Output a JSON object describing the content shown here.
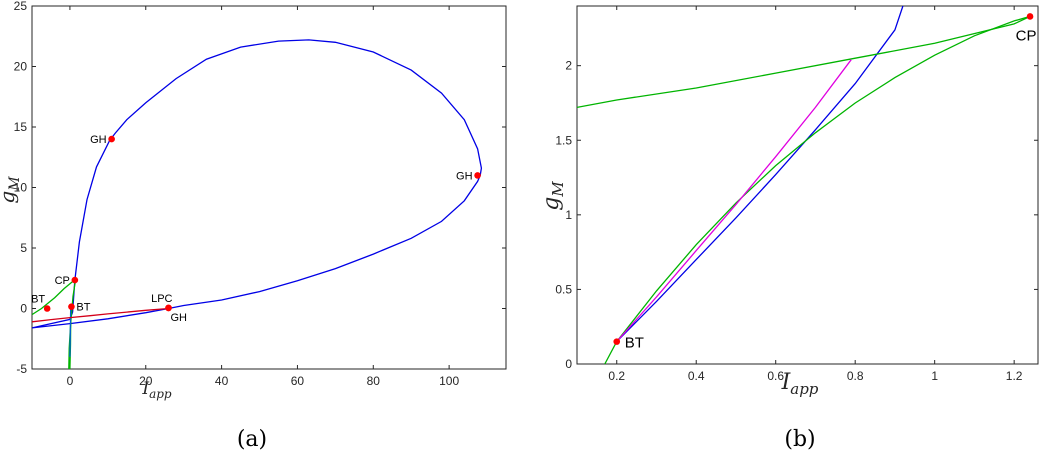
{
  "chart_data": [
    {
      "type": "line",
      "panel_label": "(a)",
      "xlabel": "I",
      "xlabel_sub": "app",
      "ylabel": "g",
      "ylabel_sub": "M",
      "xlim": [
        -10,
        115
      ],
      "ylim": [
        -5,
        25
      ],
      "xticks": [
        0,
        20,
        40,
        60,
        80,
        100
      ],
      "yticks": [
        -5,
        0,
        5,
        10,
        15,
        20,
        25
      ],
      "grid": false,
      "series": [
        {
          "color": "#0000e6",
          "x": [
            -10,
            -5,
            0,
            0.7,
            1.3,
            2.5,
            4.5,
            7,
            10.5,
            12,
            15,
            20,
            28,
            36,
            45,
            55,
            63,
            70,
            80,
            90,
            98,
            104,
            107.5,
            108.5,
            108.2,
            107.5,
            104,
            98,
            90,
            80,
            70,
            60,
            50,
            40,
            30,
            26,
            20,
            10,
            0,
            -10
          ],
          "y": [
            -1.6,
            -1.25,
            -0.9,
            -0.3,
            2.3,
            5.5,
            9,
            11.7,
            13.9,
            14.5,
            15.6,
            17.0,
            19.0,
            20.6,
            21.6,
            22.1,
            22.2,
            22.0,
            21.2,
            19.7,
            17.8,
            15.6,
            13.2,
            11.6,
            11.0,
            10.5,
            8.9,
            7.2,
            5.8,
            4.5,
            3.3,
            2.3,
            1.4,
            0.7,
            0.25,
            0.0,
            -0.35,
            -0.85,
            -1.25,
            -1.6
          ]
        },
        {
          "color": "#00b400",
          "x": [
            -10,
            -7.5,
            -4,
            -1.5,
            0.2,
            1.2,
            1.5,
            0.8,
            0.2,
            -0.2,
            -0.3
          ],
          "y": [
            -0.5,
            0.0,
            0.9,
            1.65,
            2.1,
            2.35,
            2.4,
            1.0,
            -1.2,
            -3.3,
            -5.0
          ]
        },
        {
          "color": "#00b400",
          "x": [
            0.2,
            0.2,
            0.15,
            0.0
          ],
          "y": [
            0.15,
            -1.0,
            -3.0,
            -5.0
          ]
        },
        {
          "color": "#0060d0",
          "x": [
            0.2,
            0.15,
            0.1,
            0.05,
            0.0
          ],
          "y": [
            0.15,
            -1.0,
            -2.0,
            -3.0,
            -4.0
          ]
        },
        {
          "color": "#d4001a",
          "x": [
            -10,
            -5,
            0,
            5,
            10,
            15,
            20,
            26
          ],
          "y": [
            -1.1,
            -0.92,
            -0.75,
            -0.6,
            -0.45,
            -0.3,
            -0.15,
            0.0
          ]
        }
      ],
      "points": [
        {
          "label": "GH",
          "x": 11,
          "y": 14,
          "label_pos": "left"
        },
        {
          "label": "GH",
          "x": 107.5,
          "y": 11,
          "label_pos": "left"
        },
        {
          "label": "CP",
          "x": 1.3,
          "y": 2.35,
          "label_pos": "left"
        },
        {
          "label": "BT",
          "x": -6,
          "y": 0.0,
          "label_pos": "above-left"
        },
        {
          "label": "BT",
          "x": 0.4,
          "y": 0.15,
          "label_pos": "right"
        },
        {
          "label": "LPC",
          "x": 26,
          "y": 0.05,
          "label_pos": "above-left"
        },
        {
          "label": "GH",
          "x": 26,
          "y": 0.05,
          "label_pos": "below-right"
        }
      ]
    },
    {
      "type": "line",
      "panel_label": "(b)",
      "xlabel": "I",
      "xlabel_sub": "app",
      "ylabel": "g",
      "ylabel_sub": "M",
      "xlim": [
        0.1,
        1.26
      ],
      "ylim": [
        0,
        2.4
      ],
      "xticks": [
        0.2,
        0.4,
        0.6,
        0.8,
        1,
        1.2
      ],
      "yticks": [
        0,
        0.5,
        1,
        1.5,
        2
      ],
      "grid": false,
      "series": [
        {
          "color": "#0000e6",
          "x": [
            0.2,
            0.3,
            0.4,
            0.5,
            0.6,
            0.7,
            0.8,
            0.9,
            0.92
          ],
          "y": [
            0.15,
            0.42,
            0.7,
            0.98,
            1.27,
            1.57,
            1.88,
            2.24,
            2.4
          ]
        },
        {
          "color": "#00b400",
          "x": [
            0.1,
            0.2,
            0.4,
            0.6,
            0.8,
            1.0,
            1.2,
            1.24
          ],
          "y": [
            1.72,
            1.77,
            1.85,
            1.95,
            2.05,
            2.15,
            2.28,
            2.33
          ]
        },
        {
          "color": "#00b400",
          "x": [
            0.17,
            0.2,
            0.3,
            0.4,
            0.5,
            0.6,
            0.7,
            0.8,
            0.9,
            1.0,
            1.1,
            1.2,
            1.24
          ],
          "y": [
            0.0,
            0.15,
            0.49,
            0.8,
            1.08,
            1.33,
            1.55,
            1.75,
            1.92,
            2.07,
            2.2,
            2.3,
            2.33
          ]
        },
        {
          "color": "#e000e0",
          "x": [
            0.2,
            0.3,
            0.4,
            0.5,
            0.6,
            0.7,
            0.79
          ],
          "y": [
            0.15,
            0.45,
            0.76,
            1.07,
            1.39,
            1.72,
            2.04
          ]
        }
      ],
      "points": [
        {
          "label": "BT",
          "x": 0.2,
          "y": 0.15,
          "label_pos": "right"
        },
        {
          "label": "CP",
          "x": 1.24,
          "y": 2.33,
          "label_pos": "below-left"
        }
      ]
    }
  ]
}
